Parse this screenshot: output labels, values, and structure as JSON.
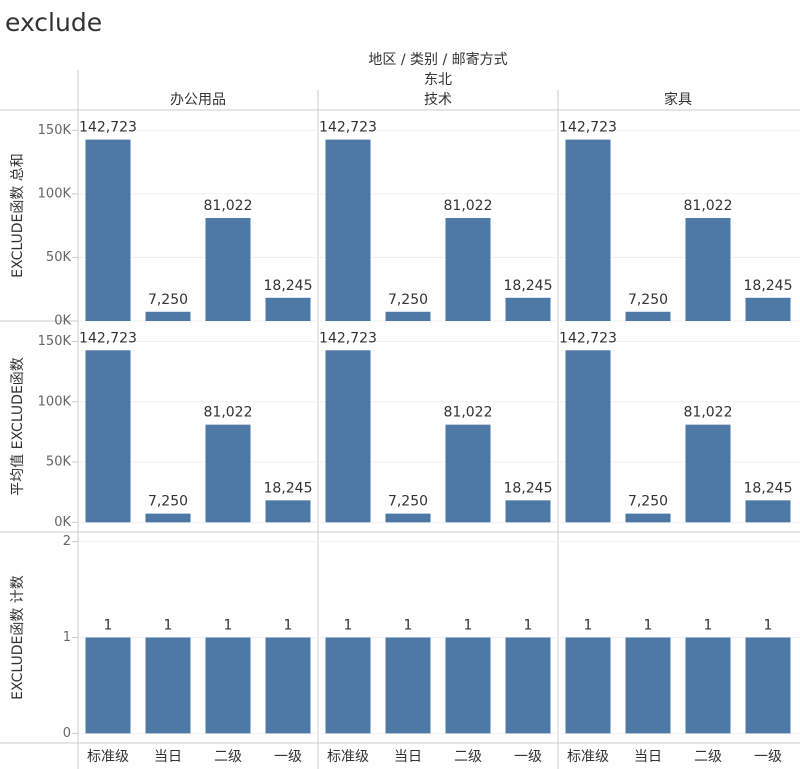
{
  "title": "exclude",
  "header": "地区 / 类别 / 邮寄方式",
  "region": "东北",
  "columns": [
    "办公用品",
    "技术",
    "家具"
  ],
  "categories": [
    "标准级",
    "当日",
    "二级",
    "一级"
  ],
  "chart_data": [
    {
      "type": "bar",
      "ylabel": "EXCLUDE函数 总和",
      "color": "#4e79a7",
      "grid": true,
      "ylim": [
        0,
        166000
      ],
      "yticks": [
        {
          "value": 0,
          "label": "0K"
        },
        {
          "value": 50000,
          "label": "50K"
        },
        {
          "value": 100000,
          "label": "100K"
        },
        {
          "value": 150000,
          "label": "150K"
        }
      ],
      "panels": [
        {
          "values": [
            142723,
            7250,
            81022,
            18245
          ],
          "value_labels": [
            "142,723",
            "7,250",
            "81,022",
            "18,245"
          ]
        },
        {
          "values": [
            142723,
            7250,
            81022,
            18245
          ],
          "value_labels": [
            "142,723",
            "7,250",
            "81,022",
            "18,245"
          ]
        },
        {
          "values": [
            142723,
            7250,
            81022,
            18245
          ],
          "value_labels": [
            "142,723",
            "7,250",
            "81,022",
            "18,245"
          ]
        }
      ]
    },
    {
      "type": "bar",
      "ylabel": "平均值 EXCLUDE函数",
      "color": "#4e79a7",
      "grid": true,
      "ylim": [
        -8000,
        167000
      ],
      "yticks": [
        {
          "value": 0,
          "label": "0K"
        },
        {
          "value": 50000,
          "label": "50K"
        },
        {
          "value": 100000,
          "label": "100K"
        },
        {
          "value": 150000,
          "label": "150K"
        }
      ],
      "panels": [
        {
          "values": [
            142723,
            7250,
            81022,
            18245
          ],
          "value_labels": [
            "142,723",
            "7,250",
            "81,022",
            "18,245"
          ]
        },
        {
          "values": [
            142723,
            7250,
            81022,
            18245
          ],
          "value_labels": [
            "142,723",
            "7,250",
            "81,022",
            "18,245"
          ]
        },
        {
          "values": [
            142723,
            7250,
            81022,
            18245
          ],
          "value_labels": [
            "142,723",
            "7,250",
            "81,022",
            "18,245"
          ]
        }
      ]
    },
    {
      "type": "bar",
      "ylabel": "EXCLUDE函数 计数",
      "color": "#4e79a7",
      "grid": true,
      "ylim": [
        -0.1,
        2.1
      ],
      "yticks": [
        0,
        1,
        2
      ],
      "panels": [
        {
          "values": [
            1,
            1,
            1,
            1
          ]
        },
        {
          "values": [
            1,
            1,
            1,
            1
          ]
        },
        {
          "values": [
            1,
            1,
            1,
            1
          ]
        }
      ]
    }
  ]
}
